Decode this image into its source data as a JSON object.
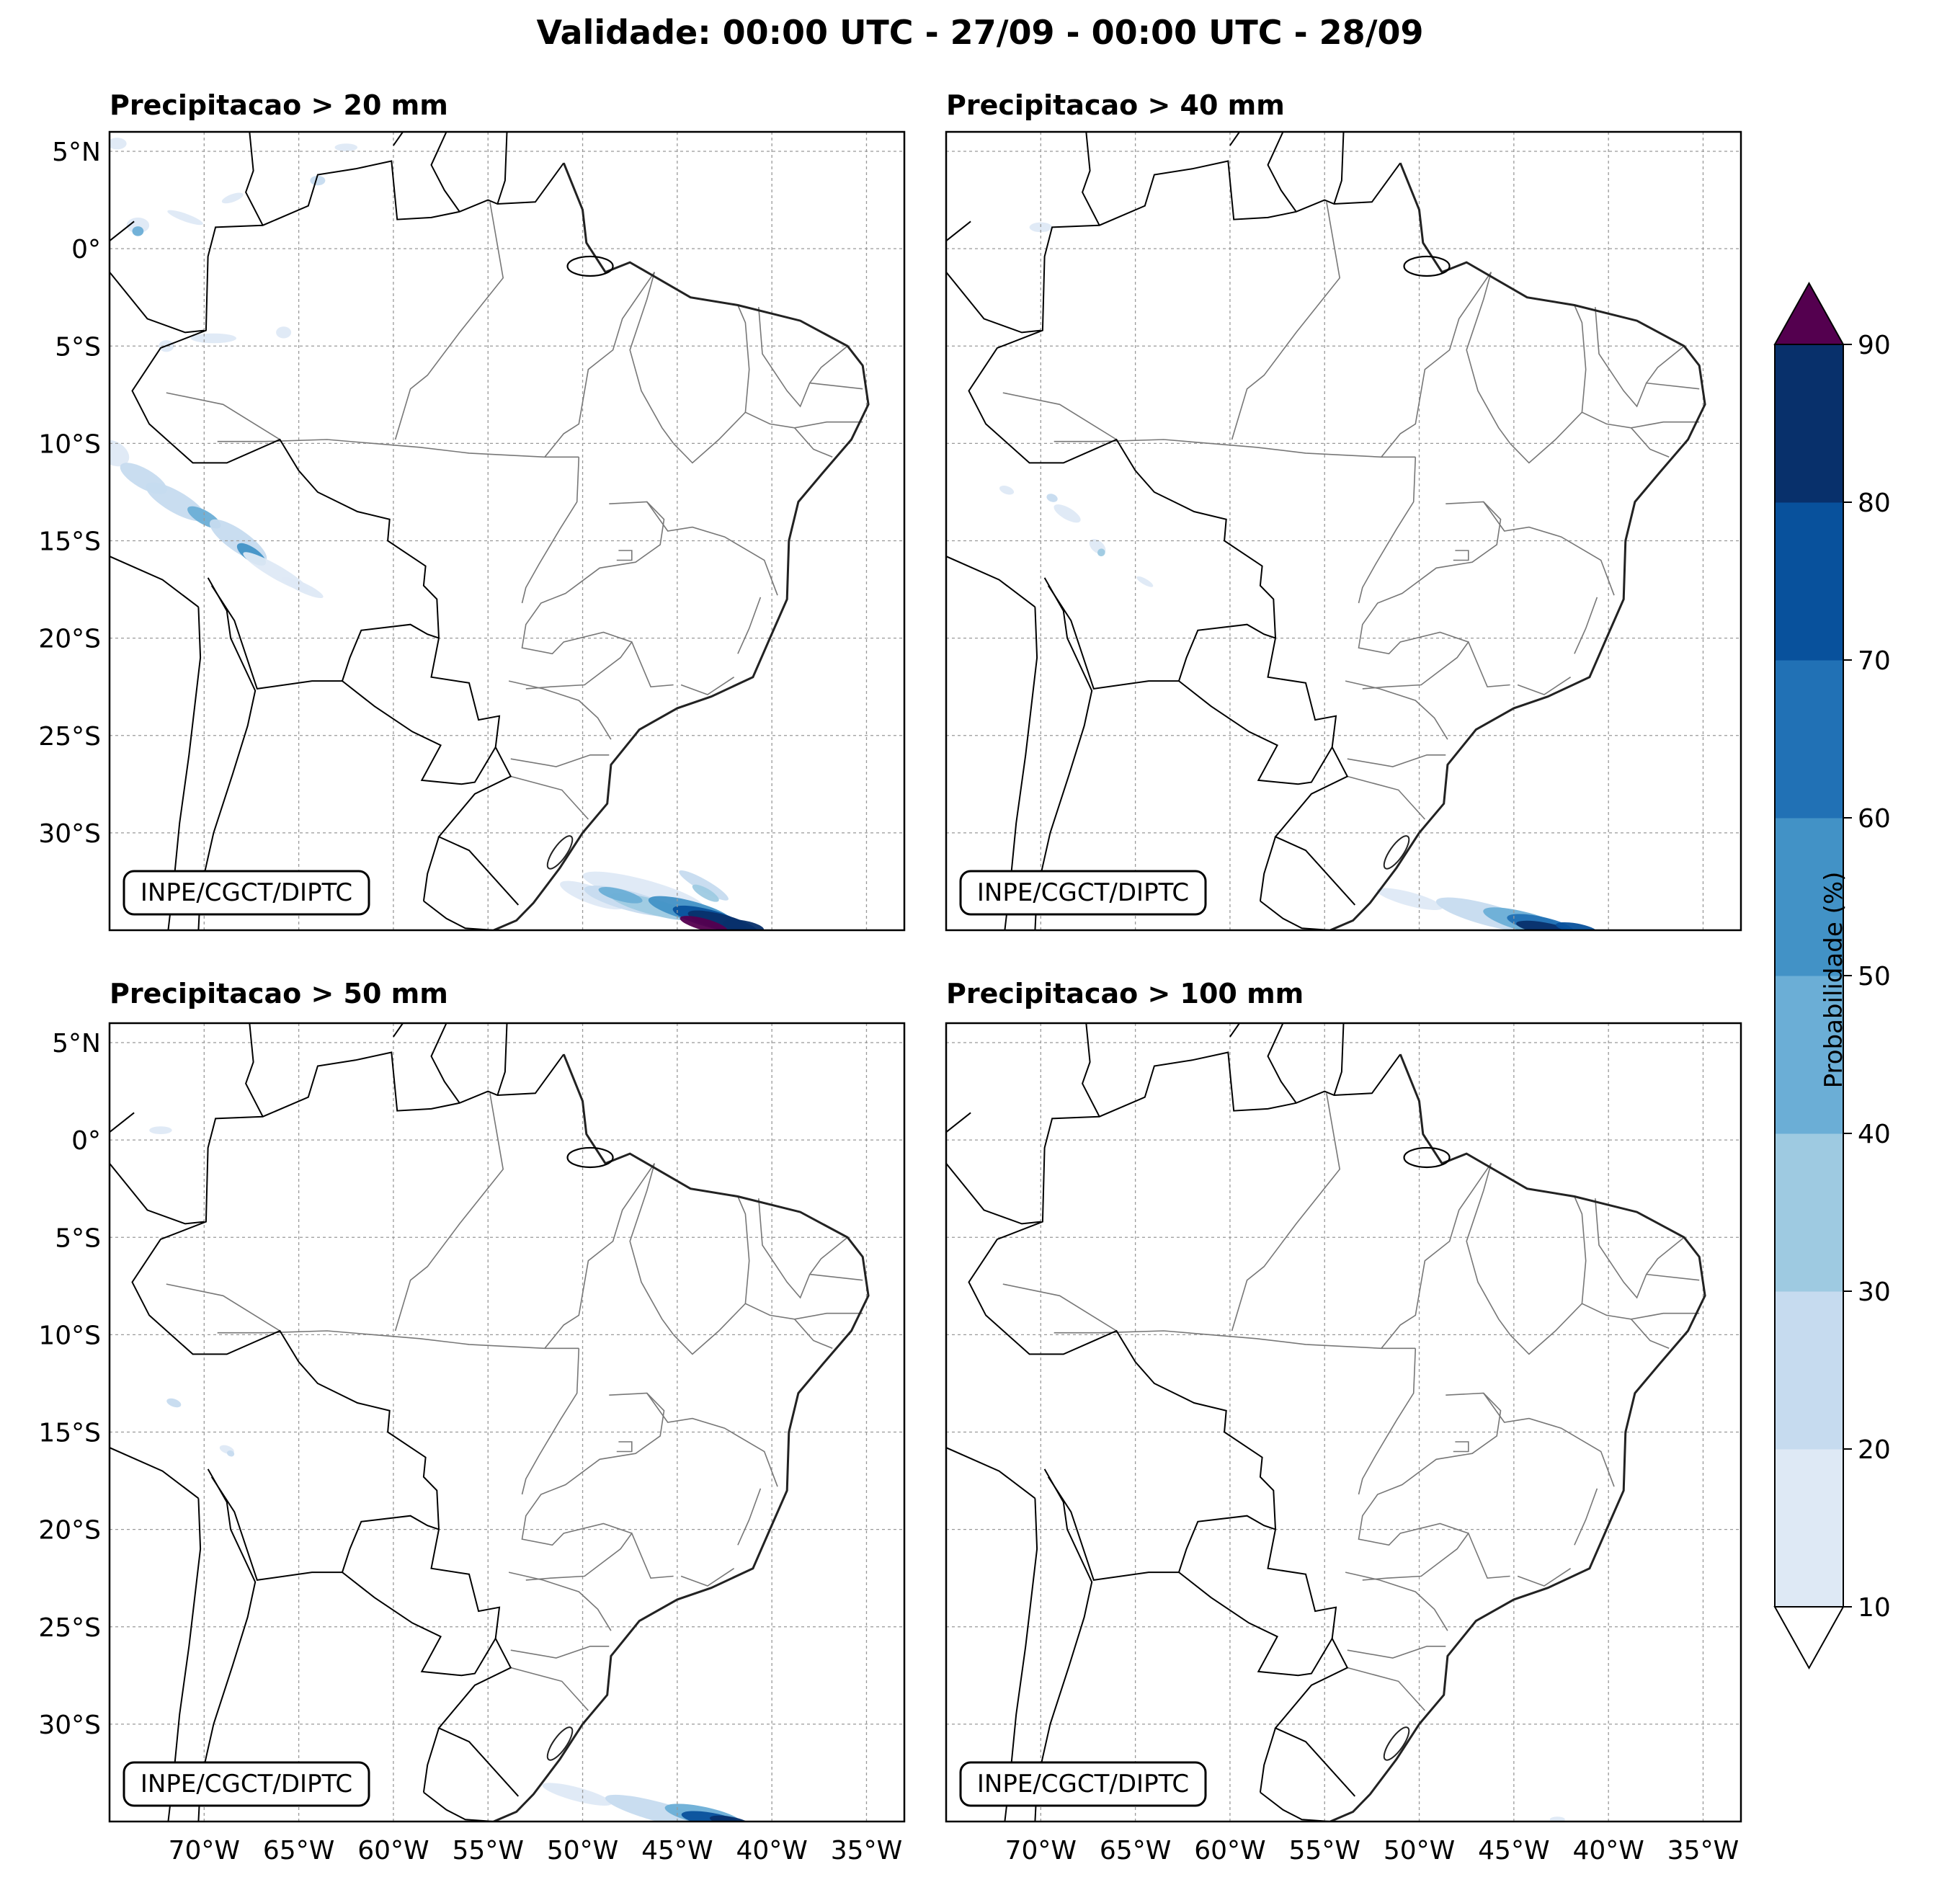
{
  "figure_title": "Validade: 00:00 UTC - 27/09 - 00:00 UTC - 28/09",
  "credit": "INPE/CGCT/DIPTC",
  "panels": [
    {
      "title": "Precipitacao > 20 mm"
    },
    {
      "title": "Precipitacao > 40 mm"
    },
    {
      "title": "Precipitacao > 50 mm"
    },
    {
      "title": "Precipitacao > 100 mm"
    }
  ],
  "axes": {
    "lat_labels": [
      "5°N",
      "0°",
      "5°S",
      "10°S",
      "15°S",
      "20°S",
      "25°S",
      "30°S"
    ],
    "lat_values": [
      5,
      0,
      -5,
      -10,
      -15,
      -20,
      -25,
      -30
    ],
    "lon_labels": [
      "70°W",
      "65°W",
      "60°W",
      "55°W",
      "50°W",
      "45°W",
      "40°W",
      "35°W"
    ],
    "lon_values": [
      -70,
      -65,
      -60,
      -55,
      -50,
      -45,
      -40,
      -35
    ],
    "lon_range": [
      -75,
      -33
    ],
    "lat_range": [
      -35,
      6
    ],
    "gridlines": true
  },
  "colorbar": {
    "label": "Probabilidade (%)",
    "ticks": [
      "10",
      "20",
      "30",
      "40",
      "50",
      "60",
      "70",
      "80",
      "90"
    ],
    "levels": [
      10,
      20,
      30,
      40,
      50,
      60,
      70,
      80,
      90
    ],
    "colors": [
      "#dee9f5",
      "#c6dbef",
      "#9ecae1",
      "#6baed6",
      "#4292c6",
      "#2171b5",
      "#08519c",
      "#08306b"
    ],
    "over_color": "#54004f",
    "under_color": "#ffffff",
    "extend": "both"
  },
  "colors": {
    "coast": "#000000",
    "state_borders": "#777777",
    "grid": "#999999"
  }
}
